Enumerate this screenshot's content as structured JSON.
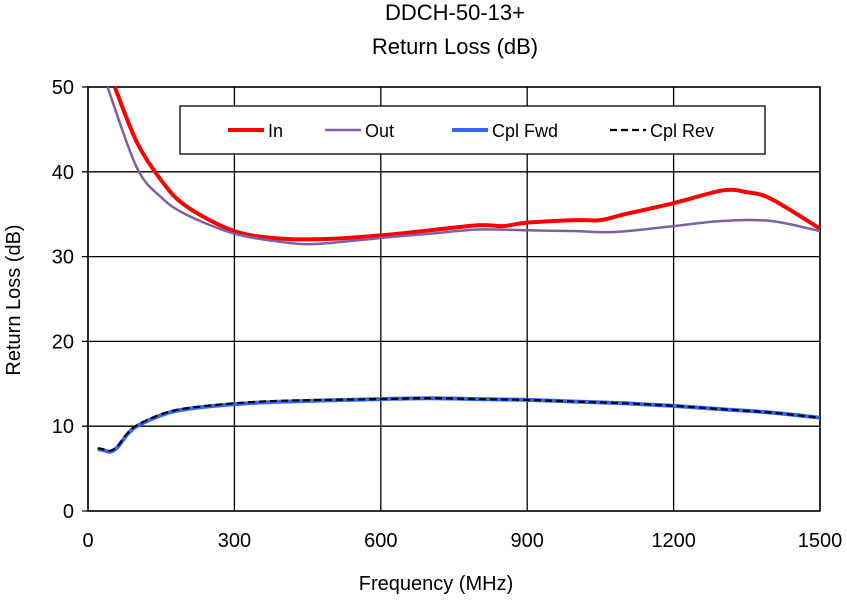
{
  "chart_data": {
    "type": "line",
    "title": "DDCH-50-13+",
    "subtitle": "Return Loss (dB)",
    "xlabel": "Frequency (MHz)",
    "ylabel": "Return Loss (dB)",
    "xlim": [
      0,
      1500
    ],
    "ylim": [
      0,
      50
    ],
    "xticks": [
      0,
      300,
      600,
      900,
      1200,
      1500
    ],
    "yticks": [
      0,
      10,
      20,
      30,
      40,
      50
    ],
    "grid": true,
    "legend_position": "top",
    "series": [
      {
        "name": "In",
        "color": "#ff0000",
        "dash": false,
        "points": [
          [
            55,
            50
          ],
          [
            100,
            43.5
          ],
          [
            150,
            39
          ],
          [
            200,
            36
          ],
          [
            300,
            33
          ],
          [
            400,
            32.1
          ],
          [
            500,
            32.1
          ],
          [
            600,
            32.5
          ],
          [
            700,
            33.1
          ],
          [
            800,
            33.7
          ],
          [
            850,
            33.6
          ],
          [
            900,
            34
          ],
          [
            1000,
            34.3
          ],
          [
            1050,
            34.3
          ],
          [
            1100,
            35
          ],
          [
            1200,
            36.3
          ],
          [
            1300,
            37.8
          ],
          [
            1350,
            37.6
          ],
          [
            1400,
            36.8
          ],
          [
            1500,
            33.3
          ]
        ]
      },
      {
        "name": "Out",
        "color": "#7f5fa8",
        "dash": false,
        "points": [
          [
            40,
            50
          ],
          [
            100,
            40.5
          ],
          [
            150,
            37
          ],
          [
            200,
            35
          ],
          [
            300,
            32.7
          ],
          [
            400,
            31.7
          ],
          [
            470,
            31.5
          ],
          [
            600,
            32.2
          ],
          [
            700,
            32.7
          ],
          [
            800,
            33.2
          ],
          [
            900,
            33.1
          ],
          [
            1000,
            33
          ],
          [
            1080,
            32.9
          ],
          [
            1200,
            33.6
          ],
          [
            1300,
            34.2
          ],
          [
            1400,
            34.2
          ],
          [
            1500,
            33
          ]
        ]
      },
      {
        "name": "Cpl Fwd",
        "color": "#3366ff",
        "dash": false,
        "points": [
          [
            20,
            7.3
          ],
          [
            30,
            7.2
          ],
          [
            45,
            7
          ],
          [
            60,
            7.5
          ],
          [
            80,
            9
          ],
          [
            100,
            10
          ],
          [
            150,
            11.3
          ],
          [
            200,
            12
          ],
          [
            300,
            12.6
          ],
          [
            400,
            12.9
          ],
          [
            600,
            13.2
          ],
          [
            700,
            13.3
          ],
          [
            800,
            13.2
          ],
          [
            900,
            13.1
          ],
          [
            1000,
            12.9
          ],
          [
            1100,
            12.7
          ],
          [
            1200,
            12.4
          ],
          [
            1300,
            12
          ],
          [
            1400,
            11.6
          ],
          [
            1500,
            11
          ]
        ]
      },
      {
        "name": "Cpl Rev",
        "color": "#000000",
        "dash": true,
        "points": [
          [
            20,
            7.4
          ],
          [
            30,
            7.3
          ],
          [
            45,
            7.1
          ],
          [
            60,
            7.6
          ],
          [
            80,
            9.1
          ],
          [
            100,
            10.1
          ],
          [
            150,
            11.4
          ],
          [
            200,
            12.1
          ],
          [
            300,
            12.7
          ],
          [
            400,
            13
          ],
          [
            600,
            13.2
          ],
          [
            700,
            13.3
          ],
          [
            800,
            13.2
          ],
          [
            900,
            13.1
          ],
          [
            1000,
            12.9
          ],
          [
            1100,
            12.7
          ],
          [
            1200,
            12.4
          ],
          [
            1300,
            12
          ],
          [
            1400,
            11.6
          ],
          [
            1500,
            11
          ]
        ]
      }
    ]
  }
}
